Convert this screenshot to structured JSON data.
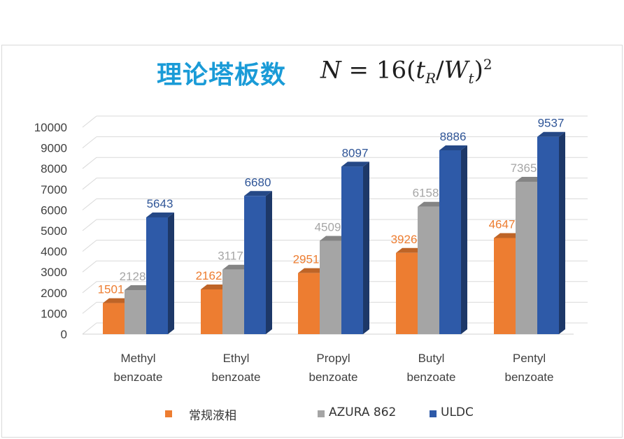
{
  "title": "理论塔板数",
  "formula": "N = 16(t_R/W_t)^2",
  "chart_data": {
    "type": "bar",
    "categories": [
      [
        "Methyl",
        "benzoate"
      ],
      [
        "Ethyl",
        "benzoate"
      ],
      [
        "Propyl",
        "benzoate"
      ],
      [
        "Butyl",
        "benzoate"
      ],
      [
        "Pentyl",
        "benzoate"
      ]
    ],
    "series": [
      {
        "name": "常规液相",
        "color": "#ed7d31",
        "label_color": "#ed7d31",
        "values": [
          1501,
          2162,
          2951,
          3926,
          4647
        ]
      },
      {
        "name": "AZURA 862",
        "color": "#a5a5a5",
        "label_color": "#a6a6a6",
        "values": [
          2128,
          3117,
          4509,
          6158,
          7365
        ]
      },
      {
        "name": "ULDC",
        "color": "#2e5aa8",
        "label_color": "#2f5597",
        "values": [
          5643,
          6680,
          8097,
          8886,
          9537
        ]
      }
    ],
    "yticks": [
      0,
      1000,
      2000,
      3000,
      4000,
      5000,
      6000,
      7000,
      8000,
      9000,
      10000
    ],
    "ylim": [
      0,
      10000
    ],
    "grid": true,
    "legend": "bottom"
  }
}
